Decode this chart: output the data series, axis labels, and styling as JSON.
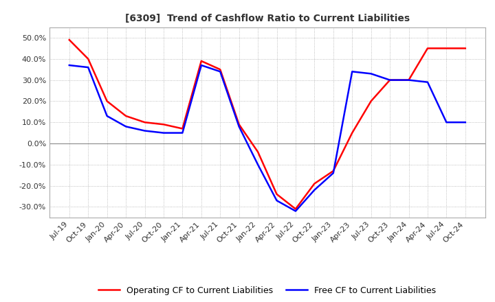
{
  "title": "[6309]  Trend of Cashflow Ratio to Current Liabilities",
  "x_labels": [
    "Jul-19",
    "Oct-19",
    "Jan-20",
    "Apr-20",
    "Jul-20",
    "Oct-20",
    "Jan-21",
    "Apr-21",
    "Jul-21",
    "Oct-21",
    "Jan-22",
    "Apr-22",
    "Jul-22",
    "Oct-22",
    "Jan-23",
    "Apr-23",
    "Jul-23",
    "Oct-23",
    "Jan-24",
    "Apr-24",
    "Jul-24",
    "Oct-24"
  ],
  "operating_cf": [
    49,
    40,
    20,
    13,
    10,
    9,
    7,
    39,
    35,
    9,
    -4,
    -24,
    -31,
    -19,
    -13,
    5,
    20,
    30,
    30,
    45,
    45,
    45
  ],
  "free_cf": [
    37,
    36,
    13,
    8,
    6,
    5,
    5,
    37,
    34,
    8,
    -10,
    -27,
    -32,
    -22,
    -14,
    34,
    33,
    30,
    30,
    29,
    10,
    10
  ],
  "operating_color": "#ff0000",
  "free_color": "#0000ff",
  "ylim": [
    -35,
    55
  ],
  "yticks": [
    -30,
    -20,
    -10,
    0,
    10,
    20,
    30,
    40,
    50
  ],
  "background_color": "#ffffff",
  "grid_color": "#aaaaaa",
  "legend_labels": [
    "Operating CF to Current Liabilities",
    "Free CF to Current Liabilities"
  ],
  "title_fontsize": 10,
  "tick_fontsize": 8
}
